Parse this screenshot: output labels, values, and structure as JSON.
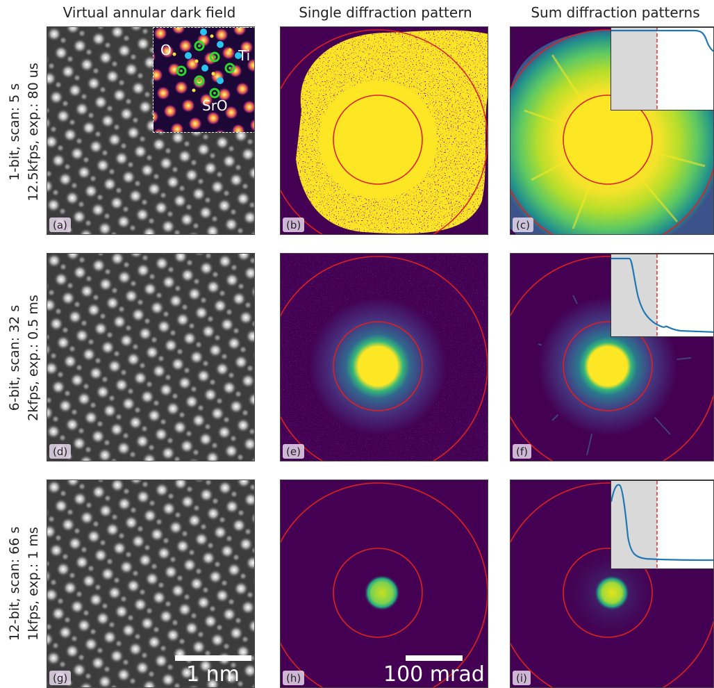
{
  "columns": {
    "vadf": "Virtual annular dark field",
    "single": "Single diffraction pattern",
    "sum": "Sum diffraction patterns"
  },
  "rows": [
    {
      "line1": "1-bit, scan: 5 s",
      "line2": "12.5kfps, exp.: 80 us"
    },
    {
      "line1": "6-bit, scan: 32 s",
      "line2": "2kfps, exp.: 0.5 ms"
    },
    {
      "line1": "12-bit, scan: 66 s",
      "line2": "1kfps, exp.: 1 ms"
    }
  ],
  "panel_labels": [
    "(a)",
    "(b)",
    "(c)",
    "(d)",
    "(e)",
    "(f)",
    "(g)",
    "(h)",
    "(i)"
  ],
  "inset": {
    "o": "O",
    "ti": "Ti",
    "sro": "SrO"
  },
  "scalebars": {
    "real_space": "1 nm",
    "reciprocal": "100 mrad"
  },
  "colors": {
    "ring": "#e0201e",
    "viridis_yellow": "#fde725",
    "viridis_purple": "#440154",
    "profile_line": "#1f77b4",
    "profile_shade": "#d9d9d9"
  }
}
